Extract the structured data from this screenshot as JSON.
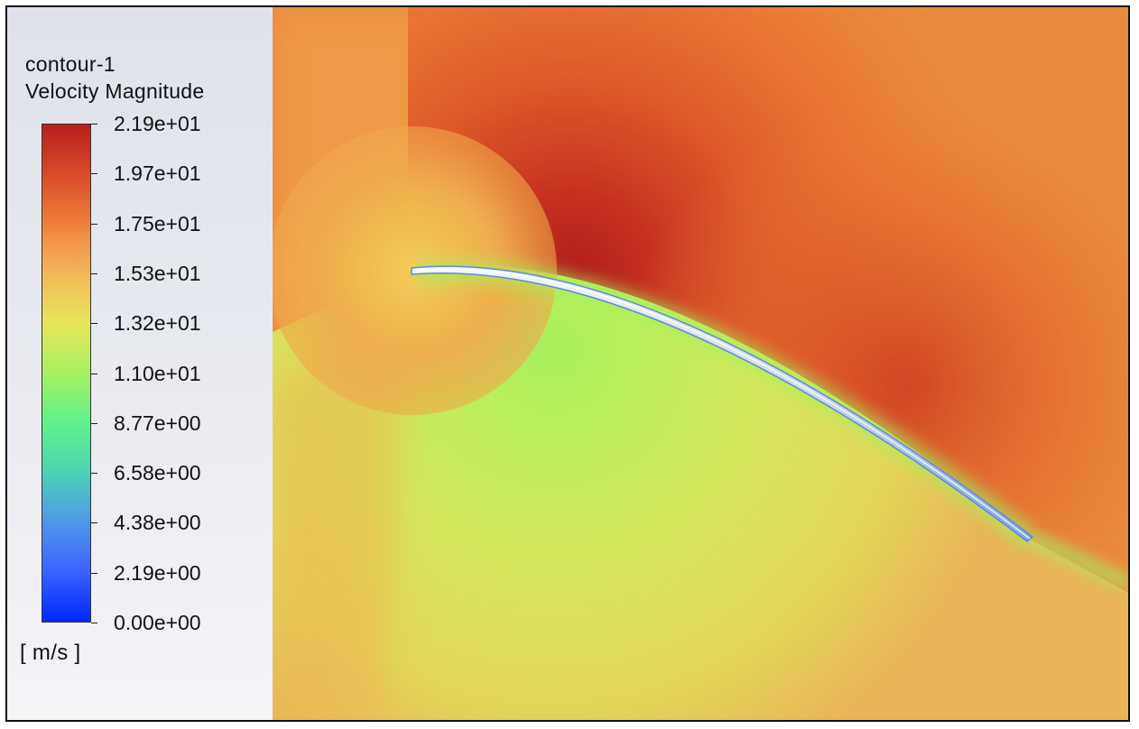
{
  "legend": {
    "title": "contour-1",
    "variable": "Velocity Magnitude",
    "units": "[ m/s ]",
    "ticks": [
      {
        "label": "2.19e+01",
        "value": 21.9
      },
      {
        "label": "1.97e+01",
        "value": 19.7
      },
      {
        "label": "1.75e+01",
        "value": 17.5
      },
      {
        "label": "1.53e+01",
        "value": 15.3
      },
      {
        "label": "1.32e+01",
        "value": 13.2
      },
      {
        "label": "1.10e+01",
        "value": 11.0
      },
      {
        "label": "8.77e+00",
        "value": 8.77
      },
      {
        "label": "6.58e+00",
        "value": 6.58
      },
      {
        "label": "4.38e+00",
        "value": 4.38
      },
      {
        "label": "2.19e+00",
        "value": 2.19
      },
      {
        "label": "0.00e+00",
        "value": 0.0
      }
    ],
    "colormap": [
      "#0028ff",
      "#3a62ff",
      "#4f98e8",
      "#4dd2b4",
      "#5ef38c",
      "#a8f060",
      "#e6e65a",
      "#f4b85a",
      "#f0803c",
      "#d84a28",
      "#b71f1c"
    ]
  },
  "field": {
    "colors": {
      "background_orange": "#ea7f38",
      "upper_suction_peak": "#b9241e",
      "lower_pressure_side": "#d9e458",
      "near_wall_green": "#a9f05f",
      "blade_surface": "#dfe8f2"
    }
  }
}
